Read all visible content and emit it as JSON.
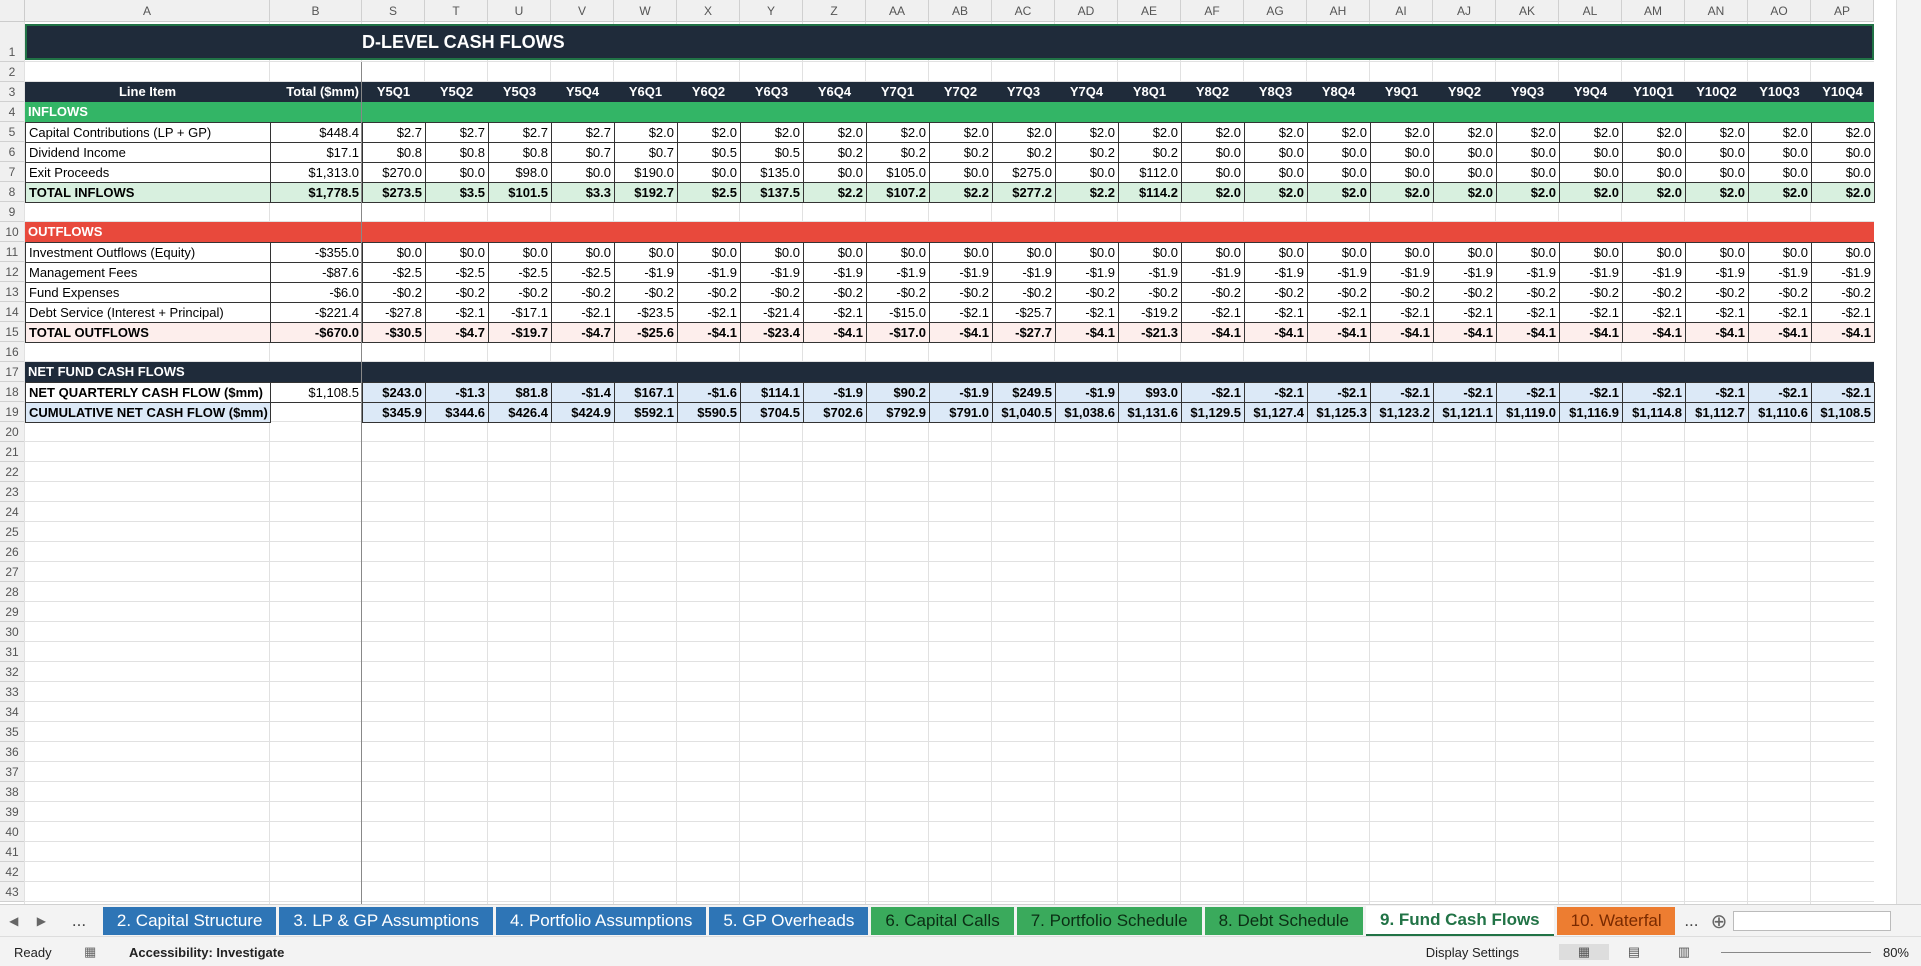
{
  "column_headers": [
    "A",
    "B",
    "S",
    "T",
    "U",
    "V",
    "W",
    "X",
    "Y",
    "Z",
    "AA",
    "AB",
    "AC",
    "AD",
    "AE",
    "AF",
    "AG",
    "AH",
    "AI",
    "AJ",
    "AK",
    "AL",
    "AM",
    "AN",
    "AO",
    "AP"
  ],
  "row_numbers": [
    1,
    2,
    3,
    4,
    5,
    6,
    7,
    8,
    9,
    10,
    11,
    12,
    13,
    14,
    15,
    16,
    17,
    18,
    19,
    20,
    21,
    22,
    23,
    24,
    25,
    26,
    27,
    28,
    29,
    30,
    31,
    32,
    33,
    34,
    35,
    36,
    37,
    38,
    39,
    40,
    41,
    42,
    43
  ],
  "title": "D-LEVEL CASH FLOWS",
  "header": [
    "Line Item",
    "Total ($mm)",
    "Y5Q1",
    "Y5Q2",
    "Y5Q3",
    "Y5Q4",
    "Y6Q1",
    "Y6Q2",
    "Y6Q3",
    "Y6Q4",
    "Y7Q1",
    "Y7Q2",
    "Y7Q3",
    "Y7Q4",
    "Y8Q1",
    "Y8Q2",
    "Y8Q3",
    "Y8Q4",
    "Y9Q1",
    "Y9Q2",
    "Y9Q3",
    "Y9Q4",
    "Y10Q1",
    "Y10Q2",
    "Y10Q3",
    "Y10Q4"
  ],
  "sections": [
    {
      "title": "INFLOWS",
      "color": "#33b566",
      "rows": [
        {
          "label": "Capital Contributions (LP + GP)",
          "total": "$448.4",
          "values": [
            "$2.7",
            "$2.7",
            "$2.7",
            "$2.7",
            "$2.0",
            "$2.0",
            "$2.0",
            "$2.0",
            "$2.0",
            "$2.0",
            "$2.0",
            "$2.0",
            "$2.0",
            "$2.0",
            "$2.0",
            "$2.0",
            "$2.0",
            "$2.0",
            "$2.0",
            "$2.0",
            "$2.0",
            "$2.0",
            "$2.0",
            "$2.0"
          ]
        },
        {
          "label": "Dividend Income",
          "total": "$17.1",
          "values": [
            "$0.8",
            "$0.8",
            "$0.8",
            "$0.7",
            "$0.7",
            "$0.5",
            "$0.5",
            "$0.2",
            "$0.2",
            "$0.2",
            "$0.2",
            "$0.2",
            "$0.2",
            "$0.0",
            "$0.0",
            "$0.0",
            "$0.0",
            "$0.0",
            "$0.0",
            "$0.0",
            "$0.0",
            "$0.0",
            "$0.0",
            "$0.0"
          ]
        },
        {
          "label": "Exit Proceeds",
          "total": "$1,313.0",
          "values": [
            "$270.0",
            "$0.0",
            "$98.0",
            "$0.0",
            "$190.0",
            "$0.0",
            "$135.0",
            "$0.0",
            "$105.0",
            "$0.0",
            "$275.0",
            "$0.0",
            "$112.0",
            "$0.0",
            "$0.0",
            "$0.0",
            "$0.0",
            "$0.0",
            "$0.0",
            "$0.0",
            "$0.0",
            "$0.0",
            "$0.0",
            "$0.0"
          ]
        },
        {
          "label": "TOTAL INFLOWS",
          "total": "$1,778.5",
          "values": [
            "$273.5",
            "$3.5",
            "$101.5",
            "$3.3",
            "$192.7",
            "$2.5",
            "$137.5",
            "$2.2",
            "$107.2",
            "$2.2",
            "$277.2",
            "$2.2",
            "$114.2",
            "$2.0",
            "$2.0",
            "$2.0",
            "$2.0",
            "$2.0",
            "$2.0",
            "$2.0",
            "$2.0",
            "$2.0",
            "$2.0",
            "$2.0"
          ]
        }
      ]
    },
    {
      "title": "OUTFLOWS",
      "color": "#e8493c",
      "rows": [
        {
          "label": "Investment Outflows (Equity)",
          "total": "-$355.0",
          "values": [
            "$0.0",
            "$0.0",
            "$0.0",
            "$0.0",
            "$0.0",
            "$0.0",
            "$0.0",
            "$0.0",
            "$0.0",
            "$0.0",
            "$0.0",
            "$0.0",
            "$0.0",
            "$0.0",
            "$0.0",
            "$0.0",
            "$0.0",
            "$0.0",
            "$0.0",
            "$0.0",
            "$0.0",
            "$0.0",
            "$0.0",
            "$0.0"
          ]
        },
        {
          "label": "Management Fees",
          "total": "-$87.6",
          "values": [
            "-$2.5",
            "-$2.5",
            "-$2.5",
            "-$2.5",
            "-$1.9",
            "-$1.9",
            "-$1.9",
            "-$1.9",
            "-$1.9",
            "-$1.9",
            "-$1.9",
            "-$1.9",
            "-$1.9",
            "-$1.9",
            "-$1.9",
            "-$1.9",
            "-$1.9",
            "-$1.9",
            "-$1.9",
            "-$1.9",
            "-$1.9",
            "-$1.9",
            "-$1.9",
            "-$1.9"
          ]
        },
        {
          "label": "Fund Expenses",
          "total": "-$6.0",
          "values": [
            "-$0.2",
            "-$0.2",
            "-$0.2",
            "-$0.2",
            "-$0.2",
            "-$0.2",
            "-$0.2",
            "-$0.2",
            "-$0.2",
            "-$0.2",
            "-$0.2",
            "-$0.2",
            "-$0.2",
            "-$0.2",
            "-$0.2",
            "-$0.2",
            "-$0.2",
            "-$0.2",
            "-$0.2",
            "-$0.2",
            "-$0.2",
            "-$0.2",
            "-$0.2",
            "-$0.2"
          ]
        },
        {
          "label": "Debt Service (Interest + Principal)",
          "total": "-$221.4",
          "values": [
            "-$27.8",
            "-$2.1",
            "-$17.1",
            "-$2.1",
            "-$23.5",
            "-$2.1",
            "-$21.4",
            "-$2.1",
            "-$15.0",
            "-$2.1",
            "-$25.7",
            "-$2.1",
            "-$19.2",
            "-$2.1",
            "-$2.1",
            "-$2.1",
            "-$2.1",
            "-$2.1",
            "-$2.1",
            "-$2.1",
            "-$2.1",
            "-$2.1",
            "-$2.1",
            "-$2.1"
          ]
        },
        {
          "label": "TOTAL OUTFLOWS",
          "total": "-$670.0",
          "values": [
            "-$30.5",
            "-$4.7",
            "-$19.7",
            "-$4.7",
            "-$25.6",
            "-$4.1",
            "-$23.4",
            "-$4.1",
            "-$17.0",
            "-$4.1",
            "-$27.7",
            "-$4.1",
            "-$21.3",
            "-$4.1",
            "-$4.1",
            "-$4.1",
            "-$4.1",
            "-$4.1",
            "-$4.1",
            "-$4.1",
            "-$4.1",
            "-$4.1",
            "-$4.1",
            "-$4.1"
          ]
        }
      ]
    },
    {
      "title": "NET FUND CASH FLOWS",
      "color": "#1f2b3a",
      "rows": [
        {
          "label": "NET QUARTERLY CASH FLOW ($mm)",
          "total": "$1,108.5",
          "values": [
            "$243.0",
            "-$1.3",
            "$81.8",
            "-$1.4",
            "$167.1",
            "-$1.6",
            "$114.1",
            "-$1.9",
            "$90.2",
            "-$1.9",
            "$249.5",
            "-$1.9",
            "$93.0",
            "-$2.1",
            "-$2.1",
            "-$2.1",
            "-$2.1",
            "-$2.1",
            "-$2.1",
            "-$2.1",
            "-$2.1",
            "-$2.1",
            "-$2.1",
            "-$2.1"
          ]
        },
        {
          "label": "CUMULATIVE NET CASH FLOW ($mm)",
          "values": [
            "$345.9",
            "$344.6",
            "$426.4",
            "$424.9",
            "$592.1",
            "$590.5",
            "$704.5",
            "$702.6",
            "$792.9",
            "$791.0",
            "$1,040.5",
            "$1,038.6",
            "$1,131.6",
            "$1,129.5",
            "$1,127.4",
            "$1,125.3",
            "$1,123.2",
            "$1,121.1",
            "$1,119.0",
            "$1,116.9",
            "$1,114.8",
            "$1,112.7",
            "$1,110.6",
            "$1,108.5"
          ]
        }
      ]
    }
  ],
  "sheet_tabs": [
    {
      "label": "2. Capital Structure",
      "color": "#2e75b6"
    },
    {
      "label": "3. LP & GP Assumptions",
      "color": "#2e75b6"
    },
    {
      "label": "4. Portfolio Assumptions",
      "color": "#2e75b6"
    },
    {
      "label": "5. GP Overheads",
      "color": "#2e75b6"
    },
    {
      "label": "6. Capital Calls",
      "color": "#3aaa5c"
    },
    {
      "label": "7. Portfolio Schedule",
      "color": "#3aaa5c"
    },
    {
      "label": "8. Debt Schedule",
      "color": "#3aaa5c"
    },
    {
      "label": "9. Fund Cash Flows",
      "color": "#ffffff"
    },
    {
      "label": "10. Waterfal",
      "color": "#ed7d31"
    }
  ],
  "active_tab": 7,
  "tab_overflow": "...",
  "status": "Ready",
  "accessibility": "Accessibility: Investigate",
  "display_settings": "Display Settings",
  "zoom": "80%"
}
